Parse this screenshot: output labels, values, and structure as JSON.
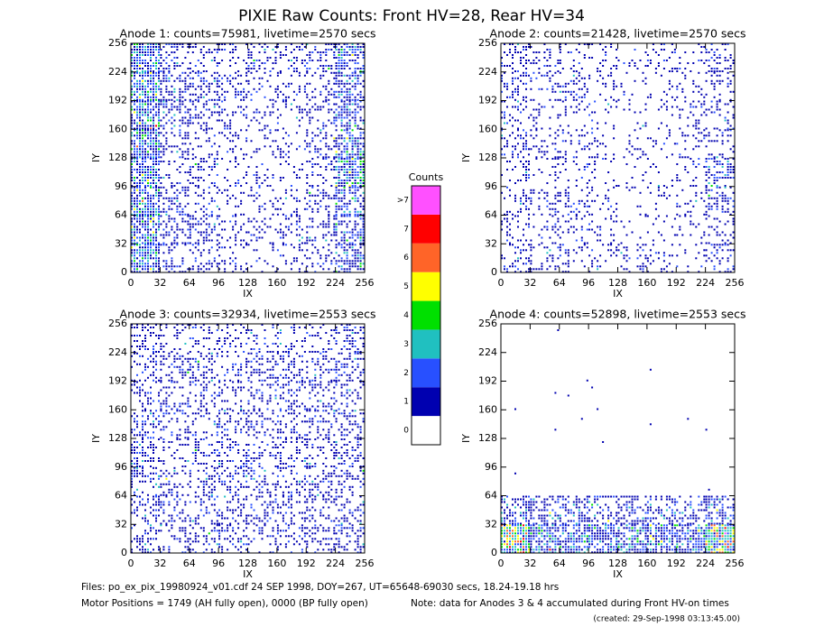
{
  "title": "PIXIE Raw Counts:  Front HV=28, Rear HV=34",
  "chart_data": [
    {
      "type": "heatmap",
      "title": "Anode 1: counts=75981, livetime=2570 secs",
      "xlabel": "IX",
      "ylabel": "IY",
      "xlim": [
        0,
        256
      ],
      "ylim": [
        0,
        256
      ],
      "xticks": [
        0,
        32,
        64,
        96,
        128,
        160,
        192,
        224,
        256
      ],
      "yticks": [
        0,
        32,
        64,
        96,
        128,
        160,
        192,
        224,
        256
      ],
      "values": [
        [
          1.5,
          0.5,
          0.3,
          0.3,
          0.5,
          0.3,
          0.5,
          1.2
        ],
        [
          1.8,
          0.6,
          0.5,
          0.3,
          0.2,
          0.2,
          0.4,
          1.0
        ],
        [
          1.6,
          0.5,
          0.5,
          0.3,
          0.2,
          0.2,
          0.4,
          0.9
        ],
        [
          1.5,
          0.4,
          0.2,
          0.2,
          0.2,
          0.2,
          0.4,
          1.2
        ],
        [
          1.5,
          0.4,
          0.5,
          0.2,
          0.2,
          0.2,
          0.3,
          1.5
        ],
        [
          1.6,
          0.5,
          0.3,
          0.2,
          0.2,
          0.2,
          0.4,
          1.0
        ],
        [
          1.5,
          0.5,
          0.6,
          0.3,
          0.3,
          0.3,
          0.4,
          1.0
        ],
        [
          1.6,
          0.4,
          0.4,
          0.3,
          0.2,
          0.2,
          0.3,
          1.0
        ]
      ]
    },
    {
      "type": "heatmap",
      "title": "Anode 2: counts=21428, livetime=2570 secs",
      "xlabel": "IX",
      "ylabel": "IY",
      "xlim": [
        0,
        256
      ],
      "ylim": [
        0,
        256
      ],
      "xticks": [
        0,
        32,
        64,
        96,
        128,
        160,
        192,
        224,
        256
      ],
      "yticks": [
        0,
        32,
        64,
        96,
        128,
        160,
        192,
        224,
        256
      ],
      "values": [
        [
          0.4,
          0.2,
          0.2,
          0.2,
          0.1,
          0.2,
          0.2,
          0.4
        ],
        [
          0.4,
          0.3,
          0.3,
          0.2,
          0.1,
          0.1,
          0.2,
          0.4
        ],
        [
          0.3,
          0.2,
          0.2,
          0.2,
          0.1,
          0.1,
          0.2,
          0.4
        ],
        [
          0.4,
          0.3,
          0.3,
          0.1,
          0.1,
          0.1,
          0.2,
          0.4
        ],
        [
          0.3,
          0.2,
          0.2,
          0.1,
          0.1,
          0.1,
          0.2,
          0.6
        ],
        [
          0.3,
          0.3,
          0.3,
          0.2,
          0.1,
          0.1,
          0.2,
          0.5
        ],
        [
          0.3,
          0.2,
          0.2,
          0.2,
          0.1,
          0.1,
          0.2,
          0.3
        ],
        [
          0.4,
          0.3,
          0.3,
          0.2,
          0.2,
          0.2,
          0.2,
          0.4
        ]
      ]
    },
    {
      "type": "heatmap",
      "title": "Anode 3: counts=32934, livetime=2553 secs",
      "xlabel": "IX",
      "ylabel": "IY",
      "xlim": [
        0,
        256
      ],
      "ylim": [
        0,
        256
      ],
      "xticks": [
        0,
        32,
        64,
        96,
        128,
        160,
        192,
        224,
        256
      ],
      "yticks": [
        0,
        32,
        64,
        96,
        128,
        160,
        192,
        224,
        256
      ],
      "values": [
        [
          0.4,
          0.3,
          0.3,
          0.3,
          0.3,
          0.3,
          0.3,
          0.4
        ],
        [
          0.4,
          0.4,
          0.4,
          0.4,
          0.4,
          0.4,
          0.4,
          0.4
        ],
        [
          0.4,
          0.4,
          0.4,
          0.4,
          0.4,
          0.4,
          0.4,
          0.4
        ],
        [
          0.5,
          0.4,
          0.4,
          0.4,
          0.4,
          0.4,
          0.4,
          0.4
        ],
        [
          0.5,
          0.4,
          0.4,
          0.5,
          0.4,
          0.4,
          0.4,
          0.4
        ],
        [
          0.5,
          0.4,
          0.4,
          0.4,
          0.4,
          0.4,
          0.4,
          0.4
        ],
        [
          0.5,
          0.4,
          0.4,
          0.4,
          0.4,
          0.4,
          0.4,
          0.4
        ],
        [
          0.5,
          0.4,
          0.4,
          0.4,
          0.4,
          0.4,
          0.4,
          0.5
        ]
      ]
    },
    {
      "type": "heatmap",
      "title": "Anode 4: counts=52898, livetime=2553 secs",
      "xlabel": "IX",
      "ylabel": "IY",
      "xlim": [
        0,
        256
      ],
      "ylim": [
        0,
        256
      ],
      "xticks": [
        0,
        32,
        64,
        96,
        128,
        160,
        192,
        224,
        256
      ],
      "yticks": [
        0,
        32,
        64,
        96,
        128,
        160,
        192,
        224,
        256
      ],
      "values": [
        [
          0.002,
          0.002,
          0.002,
          0.002,
          0.002,
          0.002,
          0.002,
          0.002
        ],
        [
          0.002,
          0.002,
          0.002,
          0.002,
          0.002,
          0.004,
          0.002,
          0.002
        ],
        [
          0.002,
          0.002,
          0.002,
          0.002,
          0.002,
          0.002,
          0.002,
          0.002
        ],
        [
          0.002,
          0.002,
          0.002,
          0.002,
          0.002,
          0.002,
          0.002,
          0.002
        ],
        [
          0.002,
          0.002,
          0.002,
          0.002,
          0.002,
          0.002,
          0.002,
          0.002
        ],
        [
          0.01,
          0.004,
          0.004,
          0.004,
          0.004,
          0.004,
          0.004,
          0.01
        ],
        [
          0.9,
          0.6,
          0.6,
          0.6,
          0.6,
          0.6,
          0.6,
          0.9
        ],
        [
          3.5,
          1.3,
          1.3,
          1.3,
          1.3,
          1.3,
          1.4,
          3.5
        ]
      ]
    }
  ],
  "colorbar": {
    "title": "Counts",
    "colors": [
      "#ffffff",
      "#0000b0",
      "#2850ff",
      "#20c0c0",
      "#00e000",
      "#ffff00",
      "#ff6428",
      "#ff0000",
      "#ff50ff"
    ],
    "ticks": [
      0,
      1,
      2,
      3,
      4,
      5,
      6,
      7,
      {
        "value": 8,
        "label": ">7"
      }
    ]
  },
  "footer": {
    "files": "Files: po_ex_pix_19980924_v01.cdf    24 SEP 1998, DOY=267, UT=65648-69030 secs, 18.24-19.18 hrs",
    "motor": "Motor Positions = 1749 (AH fully open), 0000 (BP fully open)",
    "note": "Note: data for Anodes 3 & 4 accumulated during Front HV-on times",
    "created": "(created: 29-Sep-1998 03:13:45.00)"
  }
}
